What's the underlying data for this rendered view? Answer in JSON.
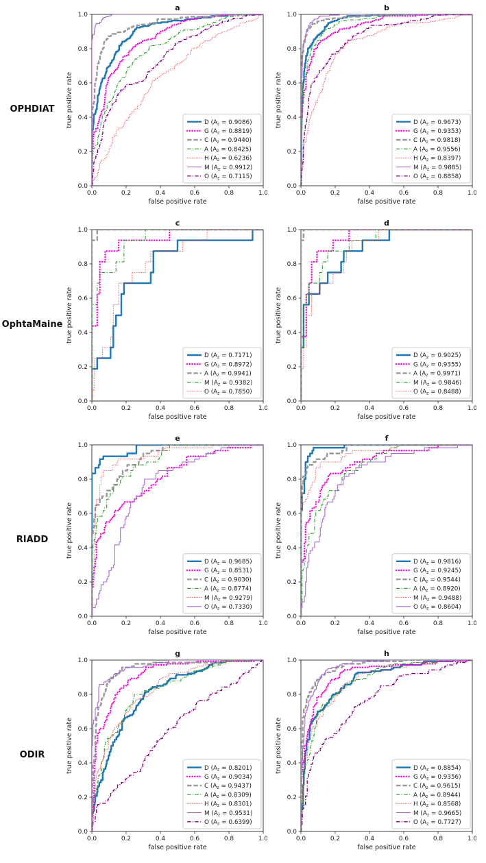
{
  "figure": {
    "background": "#ffffff",
    "axis_color": "#262626",
    "ticks": [
      "0.0",
      "0.2",
      "0.4",
      "0.6",
      "0.8",
      "1.0"
    ],
    "legend_subscript": "z"
  },
  "styles": [
    {
      "color": "#1f77b4",
      "dash": "solid",
      "width": "thick"
    },
    {
      "color": "#ff00dd",
      "dash": "dotted",
      "width": "thick"
    },
    {
      "color": "#9a9a9a",
      "dash": "dashed",
      "width": "thick"
    },
    {
      "color": "#2ca02c",
      "dash": "dashdot",
      "width": "thin"
    },
    {
      "color": "#ee3333",
      "dash": "dotted",
      "width": "thin"
    },
    {
      "color": "#ab6ad5",
      "dash": "solid",
      "width": "thin"
    },
    {
      "color": "#8b008b",
      "dash": "dashdot",
      "width": "medium"
    }
  ],
  "rows": [
    {
      "label": "OPHDIAT",
      "panels": [
        "a",
        "b"
      ]
    },
    {
      "label": "OphtaMaine",
      "panels": [
        "c",
        "d"
      ]
    },
    {
      "label": "RIADD",
      "panels": [
        "e",
        "f"
      ]
    },
    {
      "label": "ODIR",
      "panels": [
        "g",
        "h"
      ]
    }
  ],
  "chart_data": [
    {
      "panel": "a",
      "dataset": "OPHDIAT",
      "type": "line",
      "title": "a",
      "xlabel": "false positive rate",
      "ylabel": "true positive rate",
      "xlim": [
        0,
        1
      ],
      "ylim": [
        0,
        1
      ],
      "grid": false,
      "legend_position": "lower right",
      "series": [
        {
          "name": "D",
          "az": "0.9086"
        },
        {
          "name": "G",
          "az": "0.8819"
        },
        {
          "name": "C",
          "az": "0.9440"
        },
        {
          "name": "A",
          "az": "0.8425"
        },
        {
          "name": "H",
          "az": "0.6236"
        },
        {
          "name": "M",
          "az": "0.9912"
        },
        {
          "name": "O",
          "az": "0.7115"
        }
      ]
    },
    {
      "panel": "b",
      "dataset": "OPHDIAT",
      "type": "line",
      "title": "b",
      "xlabel": "false positive rate",
      "ylabel": "true positive rate",
      "xlim": [
        0,
        1
      ],
      "ylim": [
        0,
        1
      ],
      "grid": false,
      "legend_position": "lower right",
      "series": [
        {
          "name": "D",
          "az": "0.9673"
        },
        {
          "name": "G",
          "az": "0.9353"
        },
        {
          "name": "C",
          "az": "0.9818"
        },
        {
          "name": "A",
          "az": "0.9556"
        },
        {
          "name": "H",
          "az": "0.8397"
        },
        {
          "name": "M",
          "az": "0.9885"
        },
        {
          "name": "O",
          "az": "0.8858"
        }
      ]
    },
    {
      "panel": "c",
      "dataset": "OphtaMaine",
      "type": "line",
      "title": "c",
      "xlabel": "false positive rate",
      "ylabel": "true positive rate",
      "xlim": [
        0,
        1
      ],
      "ylim": [
        0,
        1
      ],
      "grid": false,
      "legend_position": "lower right",
      "series": [
        {
          "name": "D",
          "az": "0.7171"
        },
        {
          "name": "G",
          "az": "0.8972"
        },
        {
          "name": "A",
          "az": "0.9941"
        },
        {
          "name": "M",
          "az": "0.9382"
        },
        {
          "name": "O",
          "az": "0.7850"
        }
      ]
    },
    {
      "panel": "d",
      "dataset": "OphtaMaine",
      "type": "line",
      "title": "d",
      "xlabel": "false positive rate",
      "ylabel": "true positive rate",
      "xlim": [
        0,
        1
      ],
      "ylim": [
        0,
        1
      ],
      "grid": false,
      "legend_position": "lower right",
      "series": [
        {
          "name": "D",
          "az": "0.9025"
        },
        {
          "name": "G",
          "az": "0.9355"
        },
        {
          "name": "A",
          "az": "0.9971"
        },
        {
          "name": "M",
          "az": "0.9846"
        },
        {
          "name": "O",
          "az": "0.8488"
        }
      ]
    },
    {
      "panel": "e",
      "dataset": "RIADD",
      "type": "line",
      "title": "e",
      "xlabel": "false positive rate",
      "ylabel": "true positive rate",
      "xlim": [
        0,
        1
      ],
      "ylim": [
        0,
        1
      ],
      "grid": false,
      "legend_position": "lower right",
      "series": [
        {
          "name": "D",
          "az": "0.9685"
        },
        {
          "name": "G",
          "az": "0.8531"
        },
        {
          "name": "C",
          "az": "0.9030"
        },
        {
          "name": "A",
          "az": "0.8774"
        },
        {
          "name": "M",
          "az": "0.9279"
        },
        {
          "name": "O",
          "az": "0.7330"
        }
      ]
    },
    {
      "panel": "f",
      "dataset": "RIADD",
      "type": "line",
      "title": "f",
      "xlabel": "false positive rate",
      "ylabel": "true positive rate",
      "xlim": [
        0,
        1
      ],
      "ylim": [
        0,
        1
      ],
      "grid": false,
      "legend_position": "lower right",
      "series": [
        {
          "name": "D",
          "az": "0.9816"
        },
        {
          "name": "G",
          "az": "0.9245"
        },
        {
          "name": "C",
          "az": "0.9544"
        },
        {
          "name": "A",
          "az": "0.8920"
        },
        {
          "name": "M",
          "az": "0.9488"
        },
        {
          "name": "O",
          "az": "0.8604"
        }
      ]
    },
    {
      "panel": "g",
      "dataset": "ODIR",
      "type": "line",
      "title": "g",
      "xlabel": "false positive rate",
      "ylabel": "true positive rate",
      "xlim": [
        0,
        1
      ],
      "ylim": [
        0,
        1
      ],
      "grid": false,
      "legend_position": "lower right",
      "series": [
        {
          "name": "D",
          "az": "0.8201"
        },
        {
          "name": "G",
          "az": "0.9034"
        },
        {
          "name": "C",
          "az": "0.9437"
        },
        {
          "name": "A",
          "az": "0.8309"
        },
        {
          "name": "H",
          "az": "0.8301"
        },
        {
          "name": "M",
          "az": "0.9531"
        },
        {
          "name": "O",
          "az": "0.6399"
        }
      ]
    },
    {
      "panel": "h",
      "dataset": "ODIR",
      "type": "line",
      "title": "h",
      "xlabel": "false positive rate",
      "ylabel": "true positive rate",
      "xlim": [
        0,
        1
      ],
      "ylim": [
        0,
        1
      ],
      "grid": false,
      "legend_position": "lower right",
      "series": [
        {
          "name": "D",
          "az": "0.8854"
        },
        {
          "name": "G",
          "az": "0.9356"
        },
        {
          "name": "C",
          "az": "0.9615"
        },
        {
          "name": "A",
          "az": "0.8944"
        },
        {
          "name": "H",
          "az": "0.8568"
        },
        {
          "name": "M",
          "az": "0.9665"
        },
        {
          "name": "O",
          "az": "0.7727"
        }
      ]
    }
  ]
}
